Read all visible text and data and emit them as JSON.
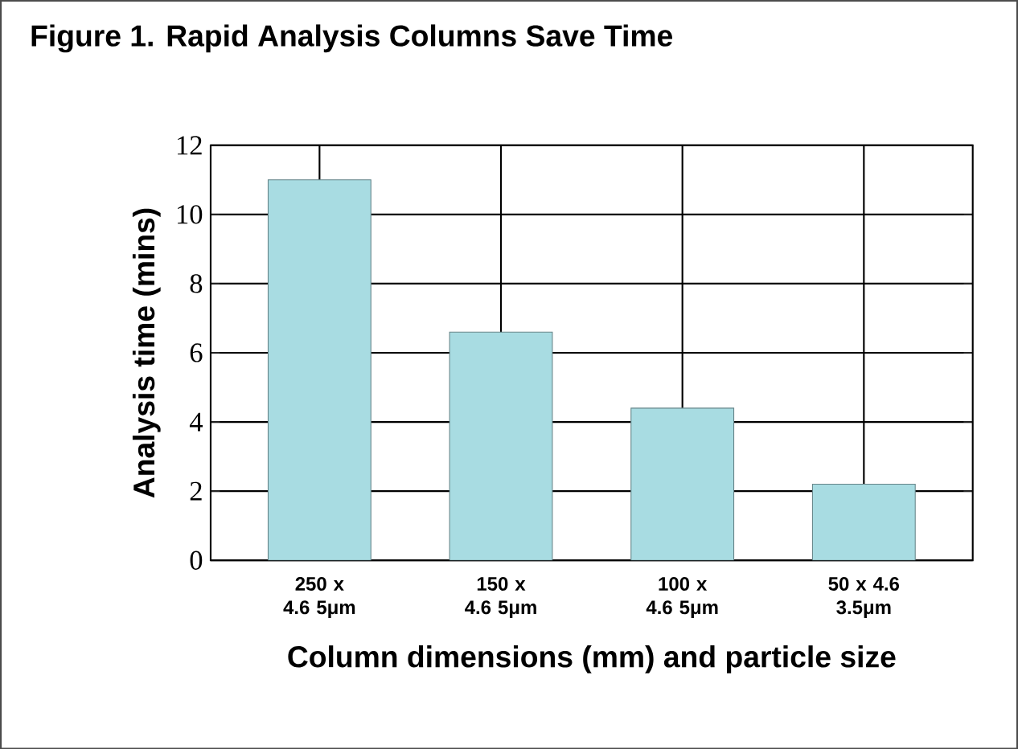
{
  "chart_data": {
    "type": "bar",
    "title": "Figure 1. Rapid Analysis Columns Save Time",
    "xlabel": "Column dimensions (mm) and particle size",
    "ylabel": "Analysis time (mins)",
    "categories": [
      "250 x 4.6 5μm",
      "150 x 4.6 5μm",
      "100 x 4.6 5μm",
      "50 x 4.6 3.5μm"
    ],
    "values": [
      11,
      6.6,
      4.4,
      2.2
    ],
    "color": "#a8dce2",
    "ylim": [
      0,
      12
    ],
    "yticks": [
      0,
      2,
      4,
      6,
      8,
      10,
      12
    ],
    "grid": true
  }
}
